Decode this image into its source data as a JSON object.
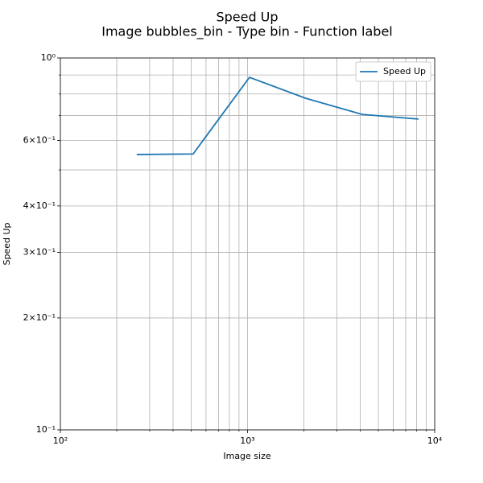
{
  "chart_data": {
    "type": "line",
    "title": "Speed Up",
    "subtitle": "Image bubbles_bin - Type bin - Function label",
    "xlabel": "Image size",
    "ylabel": "Speed Up",
    "x": [
      256,
      512,
      1024,
      2048,
      4096,
      8192
    ],
    "series": [
      {
        "name": "Speed Up",
        "color": "#1f77b4",
        "values": [
          0.55,
          0.552,
          0.887,
          0.779,
          0.705,
          0.685
        ]
      }
    ],
    "xscale": "log",
    "yscale": "log",
    "xlim": [
      100,
      10000
    ],
    "ylim": [
      0.1,
      1
    ],
    "xticks": [
      {
        "value": 100,
        "label": "10²"
      },
      {
        "value": 1000,
        "label": "10³"
      },
      {
        "value": 10000,
        "label": "10⁴"
      }
    ],
    "xminorticks": [
      200,
      300,
      400,
      500,
      600,
      700,
      800,
      900,
      2000,
      3000,
      4000,
      5000,
      6000,
      7000,
      8000,
      9000
    ],
    "yticks": [
      {
        "value": 0.1,
        "label": "10⁻¹"
      },
      {
        "value": 0.2,
        "label": "2×10⁻¹"
      },
      {
        "value": 0.3,
        "label": "3×10⁻¹"
      },
      {
        "value": 0.4,
        "label": "4×10⁻¹"
      },
      {
        "value": 0.6,
        "label": "6×10⁻¹"
      },
      {
        "value": 1,
        "label": "10⁰"
      }
    ],
    "yminorticks": [
      0.5,
      0.7,
      0.8,
      0.9
    ],
    "grid": true,
    "legend": "upper right"
  }
}
